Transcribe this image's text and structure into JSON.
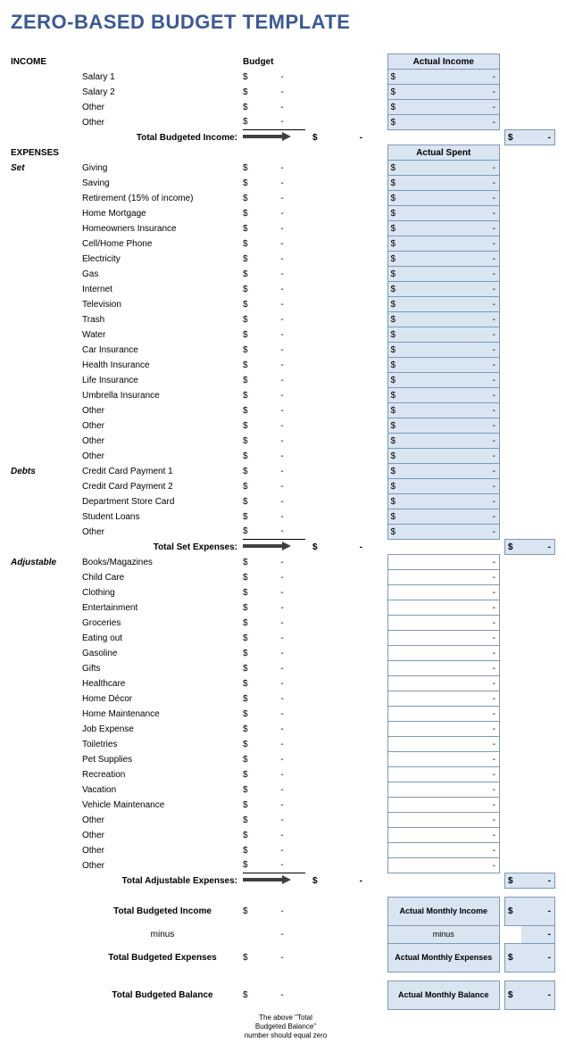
{
  "title": "ZERO-BASED BUDGET TEMPLATE",
  "headers": {
    "income": "INCOME",
    "budget": "Budget",
    "actual_income": "Actual Income",
    "expenses": "EXPENSES",
    "actual_spent": "Actual Spent"
  },
  "dollar": "$",
  "dash": "-",
  "income_items": [
    "Salary 1",
    "Salary 2",
    "Other",
    "Other"
  ],
  "totals": {
    "budgeted_income": "Total Budgeted Income:",
    "set_expenses": "Total Set Expenses:",
    "adjustable_expenses": "Total Adjustable Expenses:"
  },
  "categories": {
    "set": "Set",
    "debts": "Debts",
    "adjustable": "Adjustable"
  },
  "set_items": [
    "Giving",
    "Saving",
    "Retirement (15% of income)",
    "Home Mortgage",
    "Homeowners Insurance",
    "Cell/Home Phone",
    "Electricity",
    "Gas",
    "Internet",
    "Television",
    "Trash",
    "Water",
    "Car Insurance",
    "Health Insurance",
    "Life Insurance",
    "Umbrella Insurance",
    "Other",
    "Other",
    "Other",
    "Other"
  ],
  "debt_items": [
    "Credit Card Payment 1",
    "Credit Card Payment 2",
    "Department Store Card",
    "Student Loans",
    "Other"
  ],
  "adjustable_items": [
    "Books/Magazines",
    "Child Care",
    "Clothing",
    "Entertainment",
    "Groceries",
    "Eating out",
    "Gasoline",
    "Gifts",
    "Healthcare",
    "Home Décor",
    "Home Maintenance",
    "Job Expense",
    "Toiletries",
    "Pet Supplies",
    "Recreation",
    "Vacation",
    "Vehicle Maintenance",
    "Other",
    "Other",
    "Other",
    "Other"
  ],
  "summary": {
    "budgeted_income": "Total Budgeted Income",
    "minus": "minus",
    "budgeted_expenses": "Total Budgeted Expenses",
    "budgeted_balance": "Total Budgeted Balance",
    "actual_income": "Actual Monthly Income",
    "actual_expenses": "Actual Monthly Expenses",
    "actual_balance": "Actual Monthly Balance"
  },
  "footnote": "The above \"Total Budgeted Balance\" number should equal zero",
  "colors": {
    "title": "#3b5998",
    "blue_cell": "#d9e6f2",
    "border": "#7d99b5",
    "arrow": "#404040"
  }
}
